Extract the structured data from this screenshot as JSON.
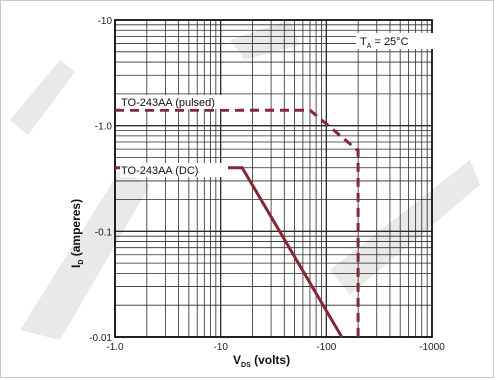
{
  "chart_data": {
    "type": "line",
    "x_scale": "log",
    "y_scale": "log",
    "xlim": [
      -1.0,
      -1000
    ],
    "ylim": [
      -10,
      -0.01
    ],
    "grid": true,
    "x_ticks": [
      "-1.0",
      "-10",
      "-100",
      "-1000"
    ],
    "y_ticks": [
      "-10",
      "-1.0",
      "-0.1",
      "-0.01"
    ],
    "xlabel_main": "V",
    "xlabel_sub": "DS",
    "xlabel_rest": " (volts)",
    "ylabel_main": "I",
    "ylabel_sub": "D",
    "ylabel_rest": " (amperes)",
    "condition_main": "T",
    "condition_sub": "A",
    "condition_rest": " = 25°C",
    "series": [
      {
        "name": "TO-243AA (pulsed)",
        "style": "dashed",
        "color": "#8a2634",
        "points": [
          [
            -1.0,
            -1.4
          ],
          [
            -70,
            -1.4
          ],
          [
            -200,
            -0.58
          ],
          [
            -200,
            -0.01
          ]
        ]
      },
      {
        "name": "TO-243AA (DC)",
        "style": "solid",
        "color": "#8a2634",
        "points": [
          [
            -1.0,
            -0.4
          ],
          [
            -16,
            -0.4
          ],
          [
            -140,
            -0.01
          ]
        ]
      }
    ],
    "colors": {
      "grid": "#2b2b2b",
      "series": "#8a2634"
    }
  }
}
